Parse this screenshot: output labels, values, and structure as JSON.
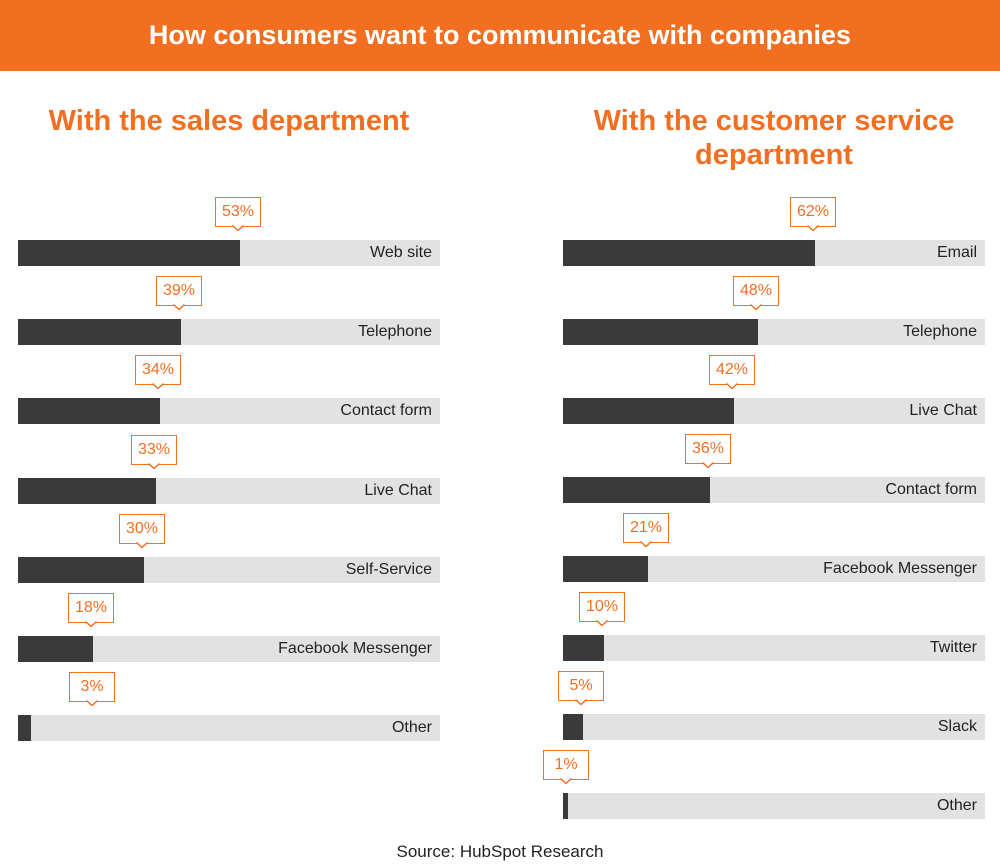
{
  "banner": {
    "title": "How consumers want to communicate with companies"
  },
  "source": "Source: HubSpot Research",
  "colors": {
    "accent": "#f26f21",
    "bar_fill": "#3a3a3a",
    "bar_track": "#e2e2e2"
  },
  "chart_data": [
    {
      "type": "bar",
      "orientation": "horizontal",
      "title": "With the sales department",
      "unit": "%",
      "categories": [
        "Web site",
        "Telephone",
        "Contact form",
        "Live Chat",
        "Self-Service",
        "Facebook Messenger",
        "Other"
      ],
      "values": [
        53,
        39,
        34,
        33,
        30,
        18,
        3
      ],
      "value_labels": [
        "53%",
        "39%",
        "34%",
        "33%",
        "30%",
        "18%",
        "3%"
      ],
      "xlim": [
        0,
        100
      ],
      "grid": false
    },
    {
      "type": "bar",
      "orientation": "horizontal",
      "title": "With the customer service department",
      "unit": "%",
      "categories": [
        "Email",
        "Telephone",
        "Live Chat",
        "Contact form",
        "Facebook Messenger",
        "Twitter",
        "Slack",
        "Other"
      ],
      "values": [
        62,
        48,
        42,
        36,
        21,
        10,
        5,
        1
      ],
      "value_labels": [
        "62%",
        "48%",
        "42%",
        "36%",
        "21%",
        "10%",
        "5%",
        "1%"
      ],
      "xlim": [
        0,
        100
      ],
      "grid": false
    }
  ]
}
